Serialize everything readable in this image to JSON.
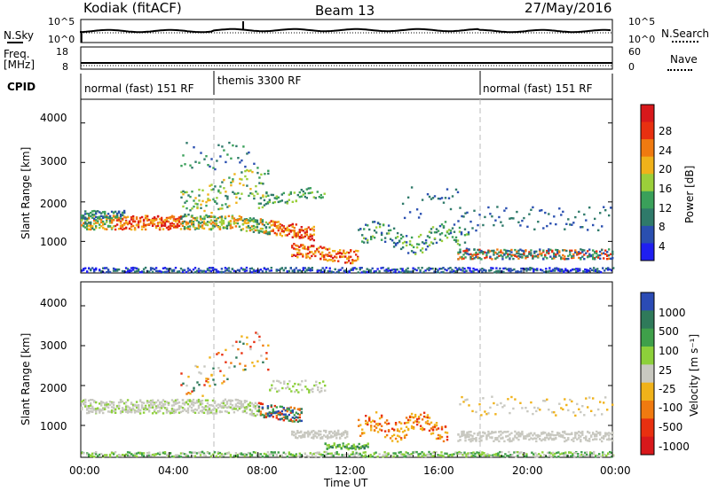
{
  "header": {
    "station": "Kodiak (fitACF)",
    "beam": "Beam 13",
    "date": "27/May/2016"
  },
  "top_panels": {
    "nsky_label": "N.Sky",
    "nsky_ticks": [
      "10^5",
      "10^0"
    ],
    "nsearch_label": "N.Search",
    "freq_label_1": "Freq.",
    "freq_label_2": "[MHz]",
    "freq_ticks": [
      "18",
      "8"
    ],
    "nave_label": "Nave",
    "nave_ticks": [
      "60",
      "0"
    ],
    "cpid_label": "CPID",
    "cpid_segments": [
      "normal (fast) 151 RF",
      "themis 3300 RF",
      "normal (fast) 151 RF"
    ]
  },
  "chart_data": [
    {
      "type": "heatmap",
      "name": "power",
      "ylabel": "Slant Range [km]",
      "yticks": [
        "1000",
        "2000",
        "3000",
        "4000"
      ],
      "ylim": [
        200,
        4600
      ],
      "colorbar_label": "Power [dB]",
      "colorbar_ticks": [
        "4",
        "8",
        "12",
        "16",
        "20",
        "24",
        "28"
      ],
      "colors": [
        "#1f1ff0",
        "#2a4fb0",
        "#2f7a6a",
        "#3aa05a",
        "#9bcf3a",
        "#f0b21a",
        "#f07a10",
        "#e83010",
        "#d8181b"
      ]
    },
    {
      "type": "heatmap",
      "name": "velocity",
      "ylabel": "Slant Range [km]",
      "yticks": [
        "1000",
        "2000",
        "3000",
        "4000"
      ],
      "ylim": [
        200,
        4600
      ],
      "colorbar_label": "Velocity [m s⁻¹]",
      "colorbar_ticks": [
        "1000",
        "500",
        "100",
        "25",
        "-25",
        "-100",
        "-500",
        "-1000"
      ],
      "colors": [
        "#2b4bb5",
        "#2f7a5a",
        "#3fa04a",
        "#8dd03a",
        "#c8c8c0",
        "#f0b21a",
        "#f07a10",
        "#e83010",
        "#d8181b"
      ]
    }
  ],
  "x_axis": {
    "label": "Time UT",
    "ticks": [
      "00:00",
      "04:00",
      "08:00",
      "12:00",
      "16:00",
      "20:00",
      "00:00"
    ]
  }
}
